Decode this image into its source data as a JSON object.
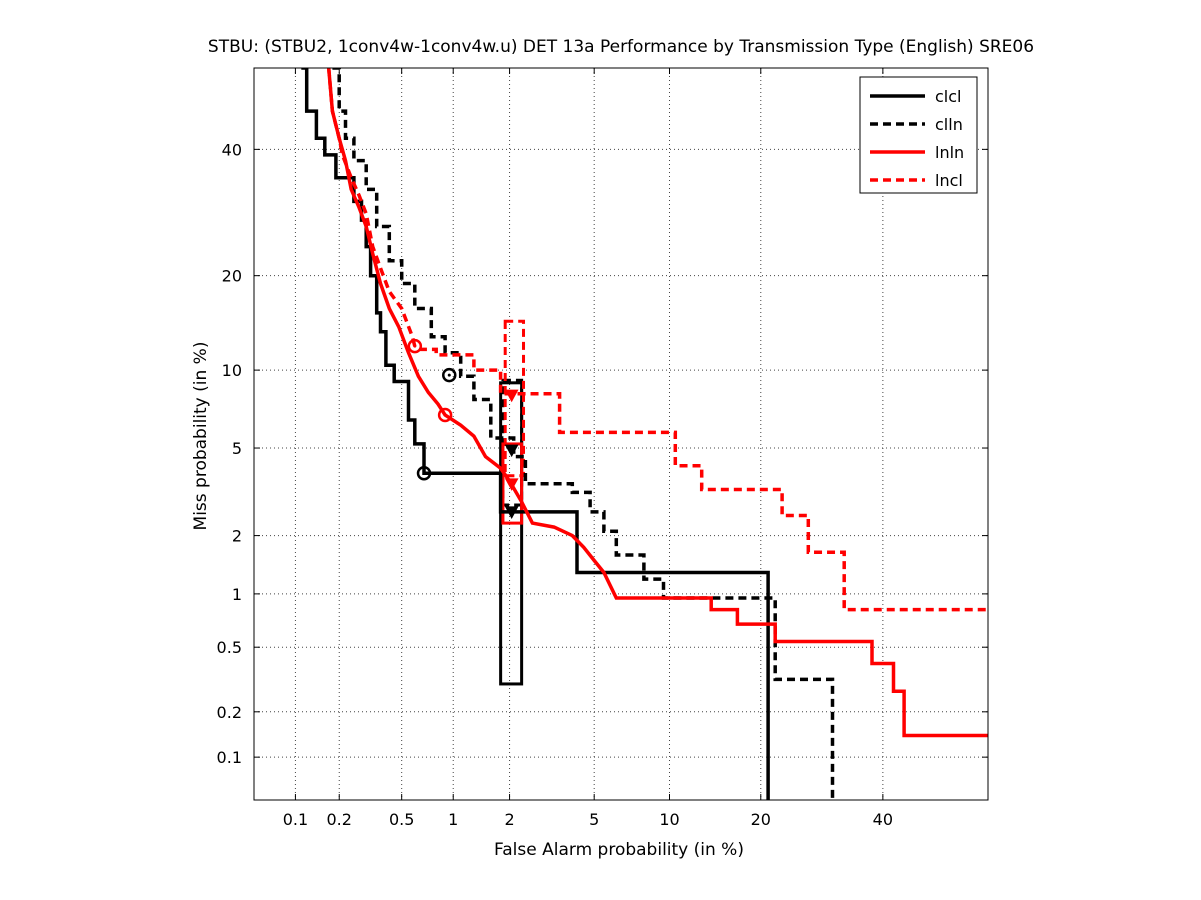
{
  "chart_data": {
    "type": "line",
    "title": "STBU: (STBU2, 1conv4w-1conv4w.u) DET 13a Performance by Transmission Type (English) SRE06",
    "xlabel": "False Alarm probability (in %)",
    "ylabel": "Miss probability (in %)",
    "scale": "normal-deviate (probit) on both axes",
    "xlim": [
      0.05,
      60
    ],
    "ylim": [
      0.05,
      55
    ],
    "x_ticks": [
      {
        "value": 0.1,
        "label": "0.1"
      },
      {
        "value": 0.2,
        "label": "0.2"
      },
      {
        "value": 0.5,
        "label": "0.5"
      },
      {
        "value": 1,
        "label": "1"
      },
      {
        "value": 2,
        "label": "2"
      },
      {
        "value": 5,
        "label": "5"
      },
      {
        "value": 10,
        "label": "10"
      },
      {
        "value": 20,
        "label": "20"
      },
      {
        "value": 40,
        "label": "40"
      }
    ],
    "y_ticks": [
      {
        "value": 0.1,
        "label": "0.1"
      },
      {
        "value": 0.2,
        "label": "0.2"
      },
      {
        "value": 0.5,
        "label": "0.5"
      },
      {
        "value": 1,
        "label": "1"
      },
      {
        "value": 2,
        "label": "2"
      },
      {
        "value": 5,
        "label": "5"
      },
      {
        "value": 10,
        "label": "10"
      },
      {
        "value": 20,
        "label": "20"
      },
      {
        "value": 40,
        "label": "40"
      }
    ],
    "grid": true,
    "legend_position": "top-right",
    "series": [
      {
        "name": "clcl",
        "color": "#000000",
        "style": "solid",
        "points": [
          [
            0.11,
            55
          ],
          [
            0.12,
            55
          ],
          [
            0.12,
            47
          ],
          [
            0.14,
            47
          ],
          [
            0.14,
            42
          ],
          [
            0.16,
            42
          ],
          [
            0.16,
            39
          ],
          [
            0.19,
            39
          ],
          [
            0.19,
            35
          ],
          [
            0.25,
            35
          ],
          [
            0.25,
            31
          ],
          [
            0.28,
            31
          ],
          [
            0.28,
            28
          ],
          [
            0.3,
            28
          ],
          [
            0.3,
            24
          ],
          [
            0.32,
            24
          ],
          [
            0.32,
            20
          ],
          [
            0.35,
            20
          ],
          [
            0.35,
            15.5
          ],
          [
            0.37,
            15.5
          ],
          [
            0.37,
            13.5
          ],
          [
            0.4,
            13.5
          ],
          [
            0.4,
            10.4
          ],
          [
            0.45,
            10.4
          ],
          [
            0.45,
            9.1
          ],
          [
            0.55,
            9.1
          ],
          [
            0.55,
            6.5
          ],
          [
            0.6,
            6.5
          ],
          [
            0.6,
            5.2
          ],
          [
            0.68,
            5.2
          ],
          [
            0.68,
            3.9
          ],
          [
            1.8,
            3.9
          ],
          [
            1.8,
            2.6
          ],
          [
            4.2,
            2.6
          ],
          [
            4.2,
            1.3
          ],
          [
            21,
            1.3
          ],
          [
            21,
            0.05
          ]
        ],
        "min_dcf": [
          0.68,
          3.9
        ],
        "act_dcf": [
          2.05,
          2.6
        ],
        "conf_box": {
          "x": [
            1.8,
            2.3
          ],
          "y": [
            0.3,
            9
          ]
        }
      },
      {
        "name": "clln",
        "color": "#000000",
        "style": "dashed",
        "points": [
          [
            0.18,
            55
          ],
          [
            0.2,
            55
          ],
          [
            0.2,
            47
          ],
          [
            0.22,
            47
          ],
          [
            0.22,
            42
          ],
          [
            0.25,
            42
          ],
          [
            0.25,
            38
          ],
          [
            0.3,
            38
          ],
          [
            0.3,
            33
          ],
          [
            0.35,
            33
          ],
          [
            0.35,
            27
          ],
          [
            0.42,
            27
          ],
          [
            0.42,
            22
          ],
          [
            0.5,
            22
          ],
          [
            0.5,
            19
          ],
          [
            0.6,
            19
          ],
          [
            0.6,
            16
          ],
          [
            0.75,
            16
          ],
          [
            0.75,
            13
          ],
          [
            0.9,
            13
          ],
          [
            0.9,
            11.5
          ],
          [
            1.1,
            11.5
          ],
          [
            1.1,
            9.5
          ],
          [
            1.3,
            9.5
          ],
          [
            1.3,
            7.8
          ],
          [
            1.6,
            7.8
          ],
          [
            1.6,
            5.5
          ],
          [
            2.1,
            5.5
          ],
          [
            2.1,
            4.6
          ],
          [
            2.4,
            4.6
          ],
          [
            2.4,
            3.5
          ],
          [
            4,
            3.5
          ],
          [
            4,
            3.2
          ],
          [
            4.8,
            3.2
          ],
          [
            4.8,
            2.6
          ],
          [
            5.5,
            2.6
          ],
          [
            5.5,
            2.1
          ],
          [
            6.2,
            2.1
          ],
          [
            6.2,
            1.6
          ],
          [
            8,
            1.6
          ],
          [
            8,
            1.2
          ],
          [
            9.5,
            1.2
          ],
          [
            9.5,
            0.95
          ],
          [
            22,
            0.95
          ],
          [
            22,
            0.32
          ],
          [
            31,
            0.32
          ],
          [
            31,
            0.05
          ]
        ],
        "min_dcf": [
          0.95,
          9.6
        ],
        "act_dcf": [
          2.05,
          4.9
        ],
        "conf_box": {
          "x": [
            1.85,
            2.3
          ],
          "y": [
            2.8,
            9.2
          ]
        }
      },
      {
        "name": "lnln",
        "color": "#ff0000",
        "style": "solid",
        "points": [
          [
            0.17,
            55
          ],
          [
            0.18,
            47
          ],
          [
            0.2,
            42
          ],
          [
            0.22,
            38
          ],
          [
            0.24,
            33
          ],
          [
            0.27,
            30
          ],
          [
            0.3,
            27
          ],
          [
            0.33,
            23
          ],
          [
            0.37,
            19
          ],
          [
            0.42,
            16
          ],
          [
            0.48,
            14
          ],
          [
            0.55,
            11.5
          ],
          [
            0.63,
            9.5
          ],
          [
            0.72,
            8.3
          ],
          [
            0.82,
            7.5
          ],
          [
            0.9,
            6.8
          ],
          [
            1.1,
            6.2
          ],
          [
            1.3,
            5.6
          ],
          [
            1.5,
            4.6
          ],
          [
            1.8,
            4.1
          ],
          [
            2,
            3.6
          ],
          [
            2.3,
            2.9
          ],
          [
            2.6,
            2.3
          ],
          [
            3.3,
            2.2
          ],
          [
            4,
            2
          ],
          [
            4.5,
            1.75
          ],
          [
            5,
            1.5
          ],
          [
            5.5,
            1.3
          ],
          [
            6.2,
            0.95
          ],
          [
            14,
            0.95
          ],
          [
            14,
            0.82
          ],
          [
            17,
            0.82
          ],
          [
            17,
            0.68
          ],
          [
            22,
            0.68
          ],
          [
            22,
            0.54
          ],
          [
            38,
            0.54
          ],
          [
            38,
            0.4
          ],
          [
            42,
            0.4
          ],
          [
            42,
            0.27
          ],
          [
            44,
            0.27
          ],
          [
            44,
            0.14
          ],
          [
            60,
            0.14
          ]
        ],
        "min_dcf": [
          0.9,
          6.8
        ],
        "act_dcf": [
          2.05,
          3.5
        ],
        "conf_box": {
          "x": [
            1.85,
            2.3
          ],
          "y": [
            2.3,
            5.2
          ]
        }
      },
      {
        "name": "lncl",
        "color": "#ff0000",
        "style": "dashed",
        "points": [
          [
            0.17,
            55
          ],
          [
            0.18,
            47
          ],
          [
            0.2,
            42
          ],
          [
            0.21,
            39
          ],
          [
            0.24,
            35
          ],
          [
            0.27,
            32
          ],
          [
            0.3,
            29
          ],
          [
            0.33,
            24
          ],
          [
            0.37,
            21
          ],
          [
            0.42,
            18
          ],
          [
            0.5,
            16
          ],
          [
            0.58,
            13
          ],
          [
            0.6,
            12.1
          ],
          [
            0.65,
            11.8
          ],
          [
            0.8,
            11.8
          ],
          [
            0.8,
            11.3
          ],
          [
            1.3,
            11.3
          ],
          [
            1.3,
            10
          ],
          [
            1.8,
            10
          ],
          [
            1.8,
            8.2
          ],
          [
            3.5,
            8.2
          ],
          [
            3.5,
            5.8
          ],
          [
            10.5,
            5.8
          ],
          [
            10.5,
            4.2
          ],
          [
            13,
            4.2
          ],
          [
            13,
            3.3
          ],
          [
            23,
            3.3
          ],
          [
            23,
            2.5
          ],
          [
            27,
            2.5
          ],
          [
            27,
            1.65
          ],
          [
            33,
            1.65
          ],
          [
            33,
            0.82
          ],
          [
            60,
            0.82
          ]
        ],
        "min_dcf": [
          0.6,
          12.1
        ],
        "act_dcf": [
          2.05,
          8.1
        ],
        "conf_box": {
          "x": [
            1.9,
            2.35
          ],
          "y": [
            3.8,
            14.6
          ]
        }
      }
    ]
  }
}
